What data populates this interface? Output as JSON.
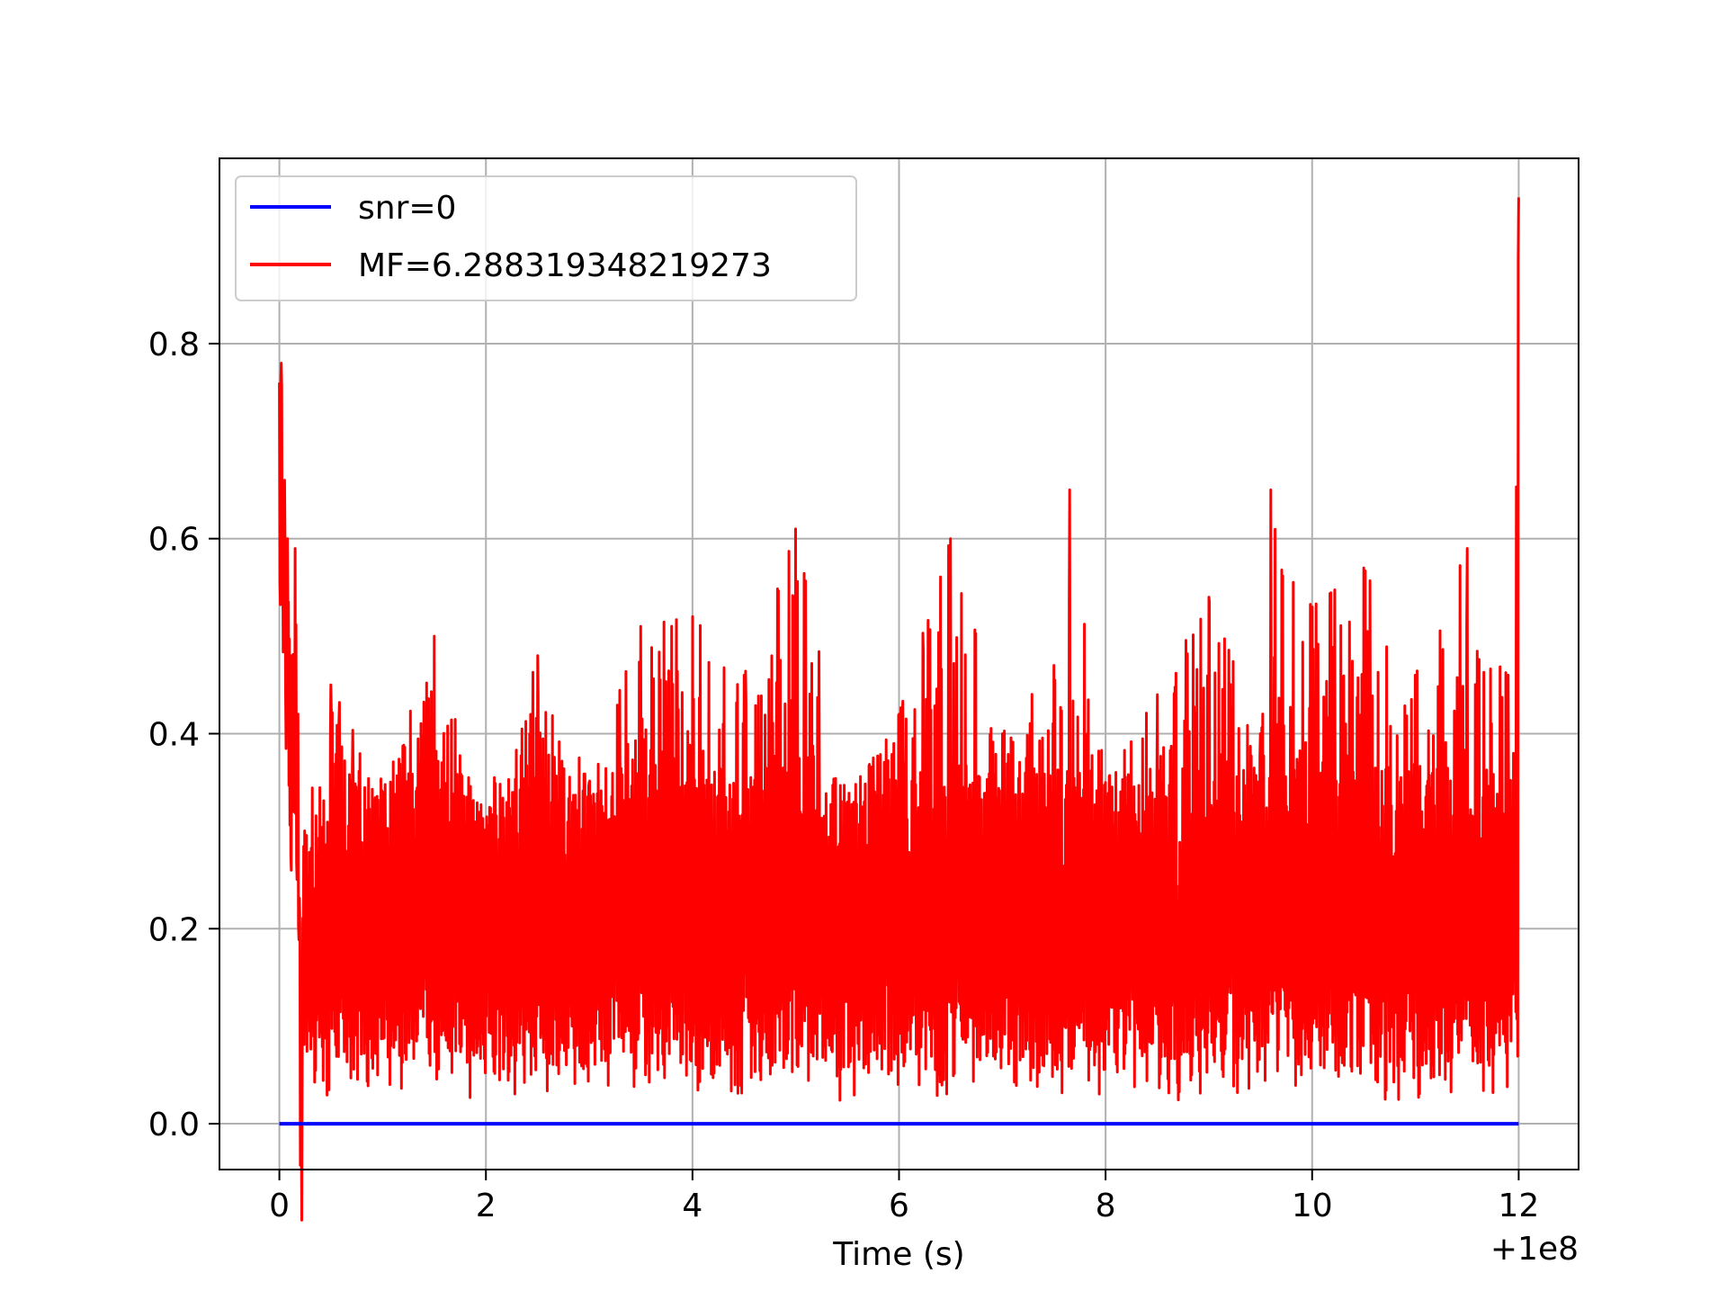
{
  "chart_data": {
    "type": "line",
    "title": "",
    "xlabel": "Time (s)",
    "ylabel": "",
    "x_offset_label": "+1e8",
    "xlim": [
      -0.58,
      12.58
    ],
    "ylim": [
      -0.047,
      0.99
    ],
    "x_ticks": [
      0,
      2,
      4,
      6,
      8,
      10,
      12
    ],
    "x_tick_labels": [
      "0",
      "2",
      "4",
      "6",
      "8",
      "10",
      "12"
    ],
    "y_ticks": [
      0.0,
      0.2,
      0.4,
      0.6,
      0.8
    ],
    "y_tick_labels": [
      "0.0",
      "0.2",
      "0.4",
      "0.6",
      "0.8"
    ],
    "grid": true,
    "legend_position": "upper-left",
    "colors": {
      "snr": "#0000ff",
      "mf": "#ff0000"
    },
    "series": [
      {
        "name": "snr=0",
        "color": "#0000ff",
        "x": [
          0,
          12
        ],
        "y": [
          0.0,
          0.0
        ]
      },
      {
        "name": "MF=6.288319348219273",
        "color": "#ff0000",
        "x": [
          0,
          0.02,
          0.05,
          0.08,
          0.12,
          0.15,
          0.18,
          0.22,
          0.5,
          1.0,
          1.5,
          2.0,
          2.5,
          3.0,
          3.5,
          4.0,
          4.5,
          5.0,
          5.5,
          6.0,
          6.5,
          7.0,
          7.5,
          7.65,
          8.0,
          8.5,
          9.0,
          9.5,
          9.6,
          10.0,
          10.5,
          11.0,
          11.5,
          11.9,
          11.95,
          12.0
        ],
        "y": [
          0.76,
          0.78,
          0.66,
          0.6,
          0.48,
          0.59,
          0.42,
          0.05,
          0.45,
          0.34,
          0.5,
          0.29,
          0.48,
          0.35,
          0.51,
          0.52,
          0.46,
          0.61,
          0.33,
          0.42,
          0.6,
          0.4,
          0.47,
          0.65,
          0.35,
          0.44,
          0.54,
          0.4,
          0.65,
          0.53,
          0.57,
          0.46,
          0.59,
          0.46,
          0.38,
          0.95
        ]
      }
    ]
  }
}
